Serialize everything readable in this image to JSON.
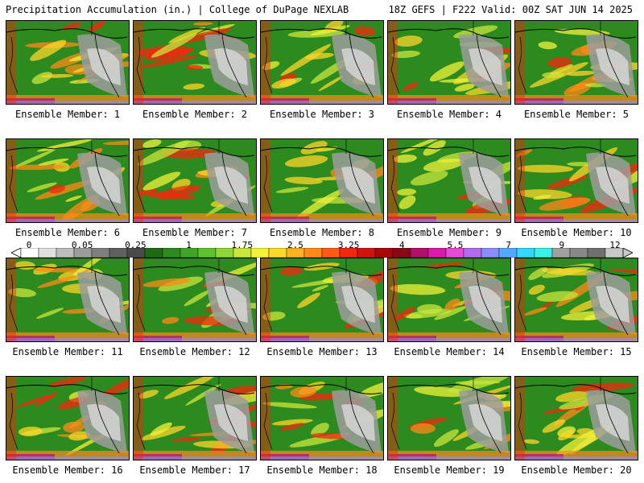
{
  "header": {
    "title": "Precipitation Accumulation (in.) | College of DuPage NEXLAB",
    "run_info": "18Z GEFS | F222 Valid: 00Z SAT JUN 14 2025"
  },
  "members": [
    {
      "label": "Ensemble Member: 1"
    },
    {
      "label": "Ensemble Member: 2"
    },
    {
      "label": "Ensemble Member: 3"
    },
    {
      "label": "Ensemble Member: 4"
    },
    {
      "label": "Ensemble Member: 5"
    },
    {
      "label": "Ensemble Member: 6"
    },
    {
      "label": "Ensemble Member: 7"
    },
    {
      "label": "Ensemble Member: 8"
    },
    {
      "label": "Ensemble Member: 9"
    },
    {
      "label": "Ensemble Member: 10"
    },
    {
      "label": "Ensemble Member: 11"
    },
    {
      "label": "Ensemble Member: 12"
    },
    {
      "label": "Ensemble Member: 13"
    },
    {
      "label": "Ensemble Member: 14"
    },
    {
      "label": "Ensemble Member: 15"
    },
    {
      "label": "Ensemble Member: 16"
    },
    {
      "label": "Ensemble Member: 17"
    },
    {
      "label": "Ensemble Member: 18"
    },
    {
      "label": "Ensemble Member: 19"
    },
    {
      "label": "Ensemble Member: 20"
    }
  ],
  "colorbar": {
    "labels": [
      "0",
      "0.05",
      "0.25",
      "1",
      "1.75",
      "2.5",
      "3.25",
      "4",
      "5.5",
      "7",
      "9",
      "12"
    ],
    "colors": [
      "#ffffff",
      "#e0e0e0",
      "#bdbdbd",
      "#9c9c9c",
      "#7f7f7f",
      "#606060",
      "#4a4a4a",
      "#1e6b12",
      "#2d8a1e",
      "#3fa428",
      "#5cc22e",
      "#8fd63a",
      "#c8e63c",
      "#f2f23a",
      "#ffd62a",
      "#ffb020",
      "#ff8a18",
      "#ff5a12",
      "#f0280e",
      "#d0140c",
      "#a8080a",
      "#880818",
      "#b0106a",
      "#d81ca8",
      "#e84ad8",
      "#b46af0",
      "#8c8cff",
      "#56a8ff",
      "#34d8ff",
      "#3cf0e8",
      "#a0a0a0",
      "#888888",
      "#707070",
      "#c8c8c8"
    ]
  }
}
